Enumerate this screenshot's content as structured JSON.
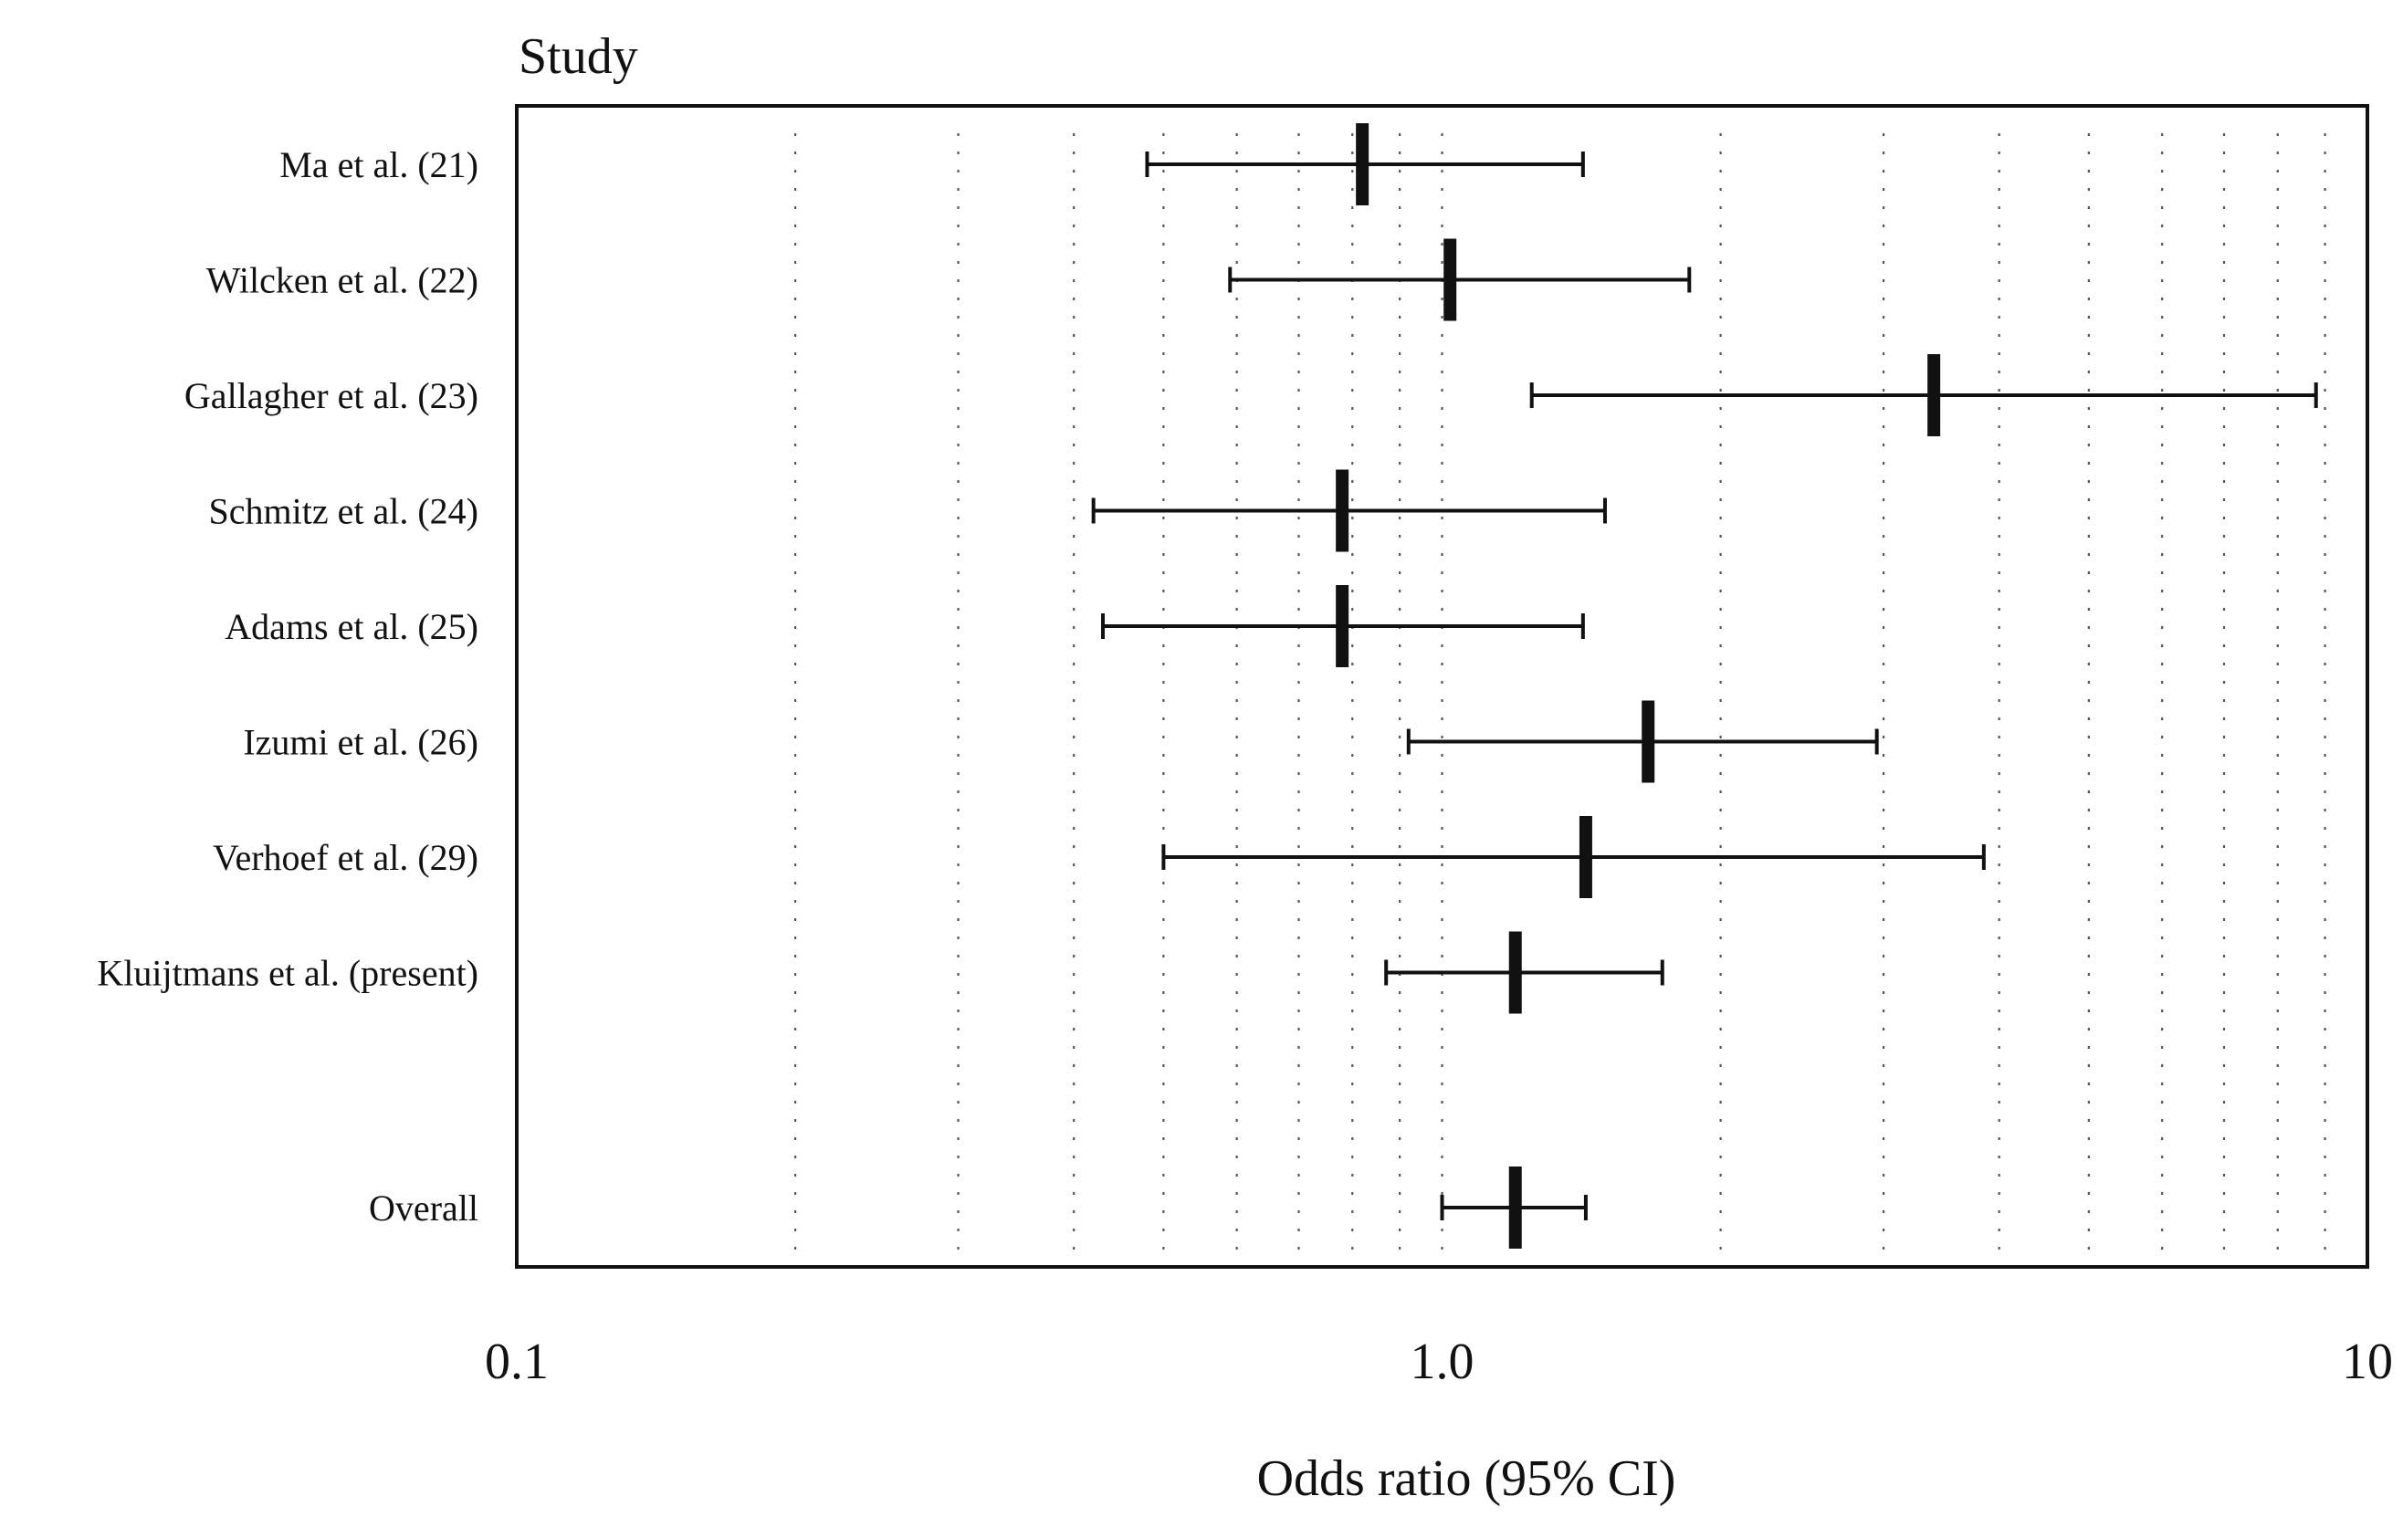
{
  "chart_data": {
    "type": "forest",
    "title": "",
    "column_header": "Study",
    "xlabel": "Odds ratio (95% CI)",
    "x_scale": "log",
    "xlim": [
      0.1,
      10
    ],
    "x_ticks": [
      0.1,
      1.0,
      10
    ],
    "x_tick_labels": [
      "0.1",
      "1.0",
      "10"
    ],
    "grid": "vertical dotted log minor gridlines",
    "colors": {
      "ink": "#111111",
      "grid": "#555555",
      "background": "#ffffff"
    },
    "studies": [
      {
        "label": "Ma et al. (21)",
        "or": 0.82,
        "lo": 0.48,
        "hi": 1.42
      },
      {
        "label": "Wilcken et al. (22)",
        "or": 1.02,
        "lo": 0.59,
        "hi": 1.85
      },
      {
        "label": "Gallagher et al. (23)",
        "or": 3.4,
        "lo": 1.25,
        "hi": 8.8
      },
      {
        "label": "Schmitz et al. (24)",
        "or": 0.78,
        "lo": 0.42,
        "hi": 1.5
      },
      {
        "label": "Adams et al. (25)",
        "or": 0.78,
        "lo": 0.43,
        "hi": 1.42
      },
      {
        "label": "Izumi et al. (26)",
        "or": 1.67,
        "lo": 0.92,
        "hi": 2.95
      },
      {
        "label": "Verhoef et al. (29)",
        "or": 1.43,
        "lo": 0.5,
        "hi": 3.85
      },
      {
        "label": "Kluijtmans et al. (present)",
        "or": 1.2,
        "lo": 0.87,
        "hi": 1.73
      }
    ],
    "overall": {
      "label": "Overall",
      "or": 1.2,
      "lo": 1.0,
      "hi": 1.43
    }
  }
}
